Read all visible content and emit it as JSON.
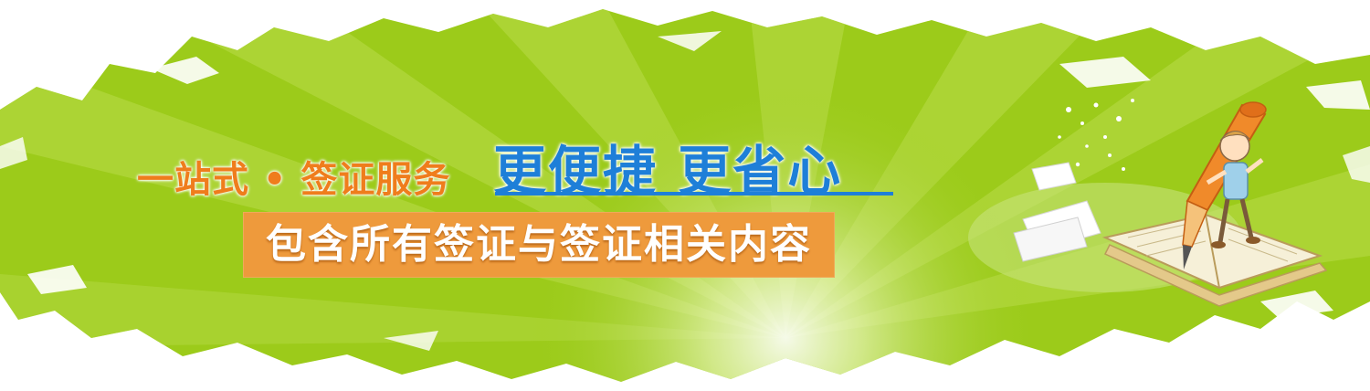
{
  "banner": {
    "headline_left": "一站式 • 签证服务",
    "headline_right": "更便捷 更省心",
    "subtitle": "包含所有签证与签证相关内容"
  },
  "colors": {
    "green": "#9ccb1a",
    "green_light": "#b9dc4a",
    "orange_text": "#ef7d1c",
    "orange_box": "#ee9a3c",
    "blue_text": "#1e7fd8"
  },
  "icons": {
    "illustration": "boy-riding-pen-on-book-illustration"
  }
}
